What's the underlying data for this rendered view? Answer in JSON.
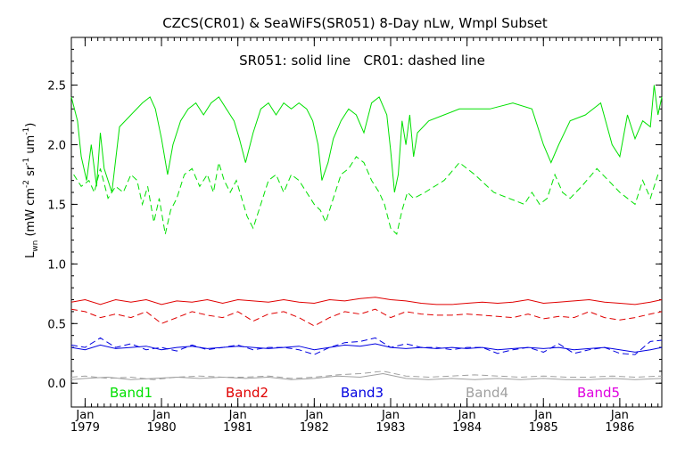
{
  "chart_data": {
    "type": "line",
    "title": "CZCS(CR01) & SeaWiFS(SR051) 8-Day nLw, Wmpl Subset",
    "subtitle": "SR051: solid line   CR01: dashed line",
    "ylabel": "L",
    "ylabel_sub": "wn",
    "ylabel_units": " (mW cm",
    "ylabel_units_exps": [
      "-2",
      "-1",
      "-1"
    ],
    "ylabel_units_parts": [
      " sr",
      " um",
      ")"
    ],
    "xlim": [
      1978.82,
      1986.55
    ],
    "ylim": [
      -0.2,
      2.9
    ],
    "y_ticks": [
      0.0,
      0.5,
      1.0,
      1.5,
      2.0,
      2.5
    ],
    "y_tick_labels": [
      "0.0",
      "0.5",
      "1.0",
      "1.5",
      "2.0",
      "2.5"
    ],
    "x_ticks": [
      1979.0,
      1980.0,
      1981.0,
      1982.0,
      1983.0,
      1984.0,
      1985.0,
      1986.0
    ],
    "x_tick_month": [
      "Jan",
      "Jan",
      "Jan",
      "Jan",
      "Jan",
      "Jan",
      "Jan",
      "Jan"
    ],
    "x_tick_year": [
      "1979",
      "1980",
      "1981",
      "1982",
      "1983",
      "1984",
      "1985",
      "1986"
    ],
    "legend_position": "bottom",
    "legend": [
      {
        "label": "Band1",
        "color": "#00e000"
      },
      {
        "label": "Band2",
        "color": "#e00000"
      },
      {
        "label": "Band3",
        "color": "#0000e0"
      },
      {
        "label": "Band4",
        "color": "#a0a0a0"
      },
      {
        "label": "Band5",
        "color": "#e000e0"
      }
    ],
    "series": [
      {
        "band": "Band1",
        "kind": "solid",
        "color": "#00e000",
        "x": [
          1978.82,
          1978.9,
          1978.95,
          1979.02,
          1979.08,
          1979.15,
          1979.2,
          1979.25,
          1979.3,
          1979.35,
          1979.45,
          1979.6,
          1979.75,
          1979.85,
          1979.92,
          1980.0,
          1980.08,
          1980.15,
          1980.25,
          1980.35,
          1980.45,
          1980.55,
          1980.65,
          1980.75,
          1980.85,
          1980.95,
          1981.02,
          1981.1,
          1981.2,
          1981.3,
          1981.4,
          1981.5,
          1981.6,
          1981.7,
          1981.8,
          1981.9,
          1981.98,
          1982.05,
          1982.1,
          1982.18,
          1982.25,
          1982.35,
          1982.45,
          1982.55,
          1982.65,
          1982.75,
          1982.85,
          1982.95,
          1983.0,
          1983.05,
          1983.1,
          1983.15,
          1983.2,
          1983.25,
          1983.3,
          1983.35,
          1983.5,
          1983.7,
          1983.9,
          1984.05,
          1984.3,
          1984.6,
          1984.85,
          1985.0,
          1985.1,
          1985.2,
          1985.35,
          1985.55,
          1985.75,
          1985.9,
          1986.0,
          1986.1,
          1986.2,
          1986.3,
          1986.4,
          1986.45,
          1986.5,
          1986.55
        ],
        "y": [
          2.4,
          2.2,
          1.9,
          1.7,
          2.0,
          1.65,
          2.1,
          1.8,
          1.7,
          1.6,
          2.15,
          2.25,
          2.35,
          2.4,
          2.3,
          2.05,
          1.75,
          2.0,
          2.2,
          2.3,
          2.35,
          2.25,
          2.35,
          2.4,
          2.3,
          2.2,
          2.05,
          1.85,
          2.1,
          2.3,
          2.35,
          2.25,
          2.35,
          2.3,
          2.35,
          2.3,
          2.2,
          2.0,
          1.7,
          1.85,
          2.05,
          2.2,
          2.3,
          2.25,
          2.1,
          2.35,
          2.4,
          2.25,
          1.95,
          1.6,
          1.75,
          2.2,
          2.0,
          2.25,
          1.9,
          2.1,
          2.2,
          2.25,
          2.3,
          2.3,
          2.3,
          2.35,
          2.3,
          2.0,
          1.85,
          2.0,
          2.2,
          2.25,
          2.35,
          2.0,
          1.9,
          2.25,
          2.05,
          2.2,
          2.15,
          2.5,
          2.25,
          2.4
        ]
      },
      {
        "band": "Band1",
        "kind": "dashed",
        "color": "#00e000",
        "x": [
          1978.85,
          1978.95,
          1979.05,
          1979.12,
          1979.2,
          1979.3,
          1979.4,
          1979.5,
          1979.6,
          1979.68,
          1979.75,
          1979.82,
          1979.9,
          1979.97,
          1980.05,
          1980.12,
          1980.2,
          1980.3,
          1980.4,
          1980.5,
          1980.6,
          1980.68,
          1980.75,
          1980.82,
          1980.9,
          1980.98,
          1981.05,
          1981.12,
          1981.2,
          1981.3,
          1981.4,
          1981.5,
          1981.6,
          1981.7,
          1981.8,
          1981.9,
          1982.0,
          1982.08,
          1982.15,
          1982.25,
          1982.35,
          1982.45,
          1982.55,
          1982.65,
          1982.75,
          1982.85,
          1982.92,
          1983.0,
          1983.08,
          1983.15,
          1983.22,
          1983.3,
          1983.45,
          1983.7,
          1983.9,
          1984.1,
          1984.35,
          1984.55,
          1984.75,
          1984.85,
          1984.95,
          1985.05,
          1985.15,
          1985.25,
          1985.35,
          1985.5,
          1985.7,
          1985.85,
          1986.0,
          1986.1,
          1986.2,
          1986.3,
          1986.4,
          1986.5
        ],
        "y": [
          1.75,
          1.65,
          1.7,
          1.6,
          1.8,
          1.55,
          1.65,
          1.6,
          1.75,
          1.7,
          1.5,
          1.65,
          1.35,
          1.55,
          1.25,
          1.45,
          1.55,
          1.75,
          1.8,
          1.65,
          1.75,
          1.6,
          1.85,
          1.7,
          1.6,
          1.7,
          1.55,
          1.4,
          1.3,
          1.5,
          1.7,
          1.75,
          1.6,
          1.75,
          1.7,
          1.6,
          1.5,
          1.45,
          1.35,
          1.55,
          1.75,
          1.8,
          1.9,
          1.85,
          1.7,
          1.6,
          1.5,
          1.3,
          1.25,
          1.45,
          1.6,
          1.55,
          1.6,
          1.7,
          1.85,
          1.75,
          1.6,
          1.55,
          1.5,
          1.6,
          1.5,
          1.55,
          1.75,
          1.6,
          1.55,
          1.65,
          1.8,
          1.7,
          1.6,
          1.55,
          1.5,
          1.7,
          1.55,
          1.75
        ]
      },
      {
        "band": "Band2",
        "kind": "solid",
        "color": "#e00000",
        "x": [
          1978.82,
          1979.0,
          1979.2,
          1979.4,
          1979.6,
          1979.8,
          1980.0,
          1980.2,
          1980.4,
          1980.6,
          1980.8,
          1981.0,
          1981.2,
          1981.4,
          1981.6,
          1981.8,
          1982.0,
          1982.2,
          1982.4,
          1982.6,
          1982.8,
          1983.0,
          1983.2,
          1983.4,
          1983.6,
          1983.8,
          1984.0,
          1984.2,
          1984.4,
          1984.6,
          1984.8,
          1985.0,
          1985.2,
          1985.4,
          1985.6,
          1985.8,
          1986.0,
          1986.2,
          1986.4,
          1986.55
        ],
        "y": [
          0.68,
          0.7,
          0.66,
          0.7,
          0.68,
          0.7,
          0.66,
          0.69,
          0.68,
          0.7,
          0.67,
          0.7,
          0.69,
          0.68,
          0.7,
          0.68,
          0.67,
          0.7,
          0.69,
          0.71,
          0.72,
          0.7,
          0.69,
          0.67,
          0.66,
          0.66,
          0.67,
          0.68,
          0.67,
          0.68,
          0.7,
          0.67,
          0.68,
          0.69,
          0.7,
          0.68,
          0.67,
          0.66,
          0.68,
          0.7
        ]
      },
      {
        "band": "Band2",
        "kind": "dashed",
        "color": "#e00000",
        "x": [
          1978.82,
          1979.0,
          1979.2,
          1979.4,
          1979.6,
          1979.8,
          1980.0,
          1980.2,
          1980.4,
          1980.6,
          1980.8,
          1981.0,
          1981.2,
          1981.4,
          1981.6,
          1981.8,
          1982.0,
          1982.2,
          1982.4,
          1982.6,
          1982.8,
          1983.0,
          1983.2,
          1983.4,
          1983.6,
          1983.8,
          1984.0,
          1984.2,
          1984.4,
          1984.6,
          1984.8,
          1985.0,
          1985.2,
          1985.4,
          1985.6,
          1985.8,
          1986.0,
          1986.2,
          1986.4,
          1986.55
        ],
        "y": [
          0.62,
          0.6,
          0.55,
          0.58,
          0.55,
          0.6,
          0.5,
          0.55,
          0.6,
          0.57,
          0.55,
          0.6,
          0.52,
          0.58,
          0.6,
          0.55,
          0.48,
          0.55,
          0.6,
          0.58,
          0.62,
          0.55,
          0.6,
          0.58,
          0.57,
          0.57,
          0.58,
          0.57,
          0.56,
          0.55,
          0.58,
          0.54,
          0.56,
          0.55,
          0.6,
          0.55,
          0.53,
          0.55,
          0.58,
          0.6
        ]
      },
      {
        "band": "Band3",
        "kind": "solid",
        "color": "#0000e0",
        "x": [
          1978.82,
          1979.0,
          1979.2,
          1979.4,
          1979.6,
          1979.8,
          1980.0,
          1980.2,
          1980.4,
          1980.6,
          1980.8,
          1981.0,
          1981.2,
          1981.4,
          1981.6,
          1981.8,
          1982.0,
          1982.2,
          1982.4,
          1982.6,
          1982.8,
          1983.0,
          1983.2,
          1983.4,
          1983.6,
          1983.8,
          1984.0,
          1984.2,
          1984.4,
          1984.6,
          1984.8,
          1985.0,
          1985.2,
          1985.4,
          1985.6,
          1985.8,
          1986.0,
          1986.2,
          1986.4,
          1986.55
        ],
        "y": [
          0.3,
          0.28,
          0.32,
          0.29,
          0.3,
          0.31,
          0.28,
          0.3,
          0.31,
          0.29,
          0.3,
          0.31,
          0.3,
          0.29,
          0.3,
          0.31,
          0.28,
          0.3,
          0.32,
          0.31,
          0.33,
          0.3,
          0.29,
          0.3,
          0.29,
          0.3,
          0.29,
          0.3,
          0.28,
          0.29,
          0.3,
          0.29,
          0.3,
          0.28,
          0.29,
          0.3,
          0.28,
          0.26,
          0.28,
          0.3
        ]
      },
      {
        "band": "Band3",
        "kind": "dashed",
        "color": "#0000e0",
        "x": [
          1978.82,
          1979.0,
          1979.2,
          1979.4,
          1979.6,
          1979.8,
          1980.0,
          1980.2,
          1980.4,
          1980.6,
          1980.8,
          1981.0,
          1981.2,
          1981.4,
          1981.6,
          1981.8,
          1982.0,
          1982.2,
          1982.4,
          1982.6,
          1982.8,
          1983.0,
          1983.2,
          1983.4,
          1983.6,
          1983.8,
          1984.0,
          1984.2,
          1984.4,
          1984.6,
          1984.8,
          1985.0,
          1985.2,
          1985.4,
          1985.6,
          1985.8,
          1986.0,
          1986.2,
          1986.4,
          1986.55
        ],
        "y": [
          0.32,
          0.3,
          0.38,
          0.3,
          0.33,
          0.28,
          0.3,
          0.27,
          0.32,
          0.28,
          0.3,
          0.32,
          0.28,
          0.3,
          0.3,
          0.28,
          0.24,
          0.3,
          0.34,
          0.35,
          0.38,
          0.3,
          0.33,
          0.3,
          0.3,
          0.28,
          0.3,
          0.3,
          0.25,
          0.28,
          0.3,
          0.26,
          0.33,
          0.25,
          0.28,
          0.3,
          0.25,
          0.24,
          0.35,
          0.36
        ]
      },
      {
        "band": "Band4",
        "kind": "solid",
        "color": "#a0a0a0",
        "x": [
          1978.82,
          1979.0,
          1979.3,
          1979.6,
          1979.9,
          1980.2,
          1980.5,
          1980.8,
          1981.1,
          1981.4,
          1981.7,
          1982.0,
          1982.3,
          1982.6,
          1982.9,
          1983.2,
          1983.5,
          1983.8,
          1984.1,
          1984.4,
          1984.7,
          1985.0,
          1985.3,
          1985.6,
          1985.9,
          1986.2,
          1986.55
        ],
        "y": [
          0.03,
          0.04,
          0.05,
          0.03,
          0.04,
          0.05,
          0.04,
          0.05,
          0.04,
          0.05,
          0.03,
          0.04,
          0.06,
          0.05,
          0.08,
          0.04,
          0.03,
          0.04,
          0.03,
          0.04,
          0.03,
          0.04,
          0.03,
          0.03,
          0.04,
          0.03,
          0.04
        ]
      },
      {
        "band": "Band4",
        "kind": "dashed",
        "color": "#a0a0a0",
        "x": [
          1978.82,
          1979.0,
          1979.3,
          1979.6,
          1979.9,
          1980.2,
          1980.5,
          1980.8,
          1981.1,
          1981.4,
          1981.7,
          1982.0,
          1982.3,
          1982.6,
          1982.9,
          1983.2,
          1983.5,
          1983.8,
          1984.1,
          1984.4,
          1984.7,
          1985.0,
          1985.3,
          1985.6,
          1985.9,
          1986.2,
          1986.55
        ],
        "y": [
          0.05,
          0.06,
          0.04,
          0.05,
          0.03,
          0.05,
          0.06,
          0.05,
          0.05,
          0.06,
          0.04,
          0.05,
          0.07,
          0.08,
          0.1,
          0.06,
          0.05,
          0.06,
          0.07,
          0.06,
          0.05,
          0.06,
          0.05,
          0.05,
          0.06,
          0.05,
          0.06
        ]
      }
    ]
  }
}
